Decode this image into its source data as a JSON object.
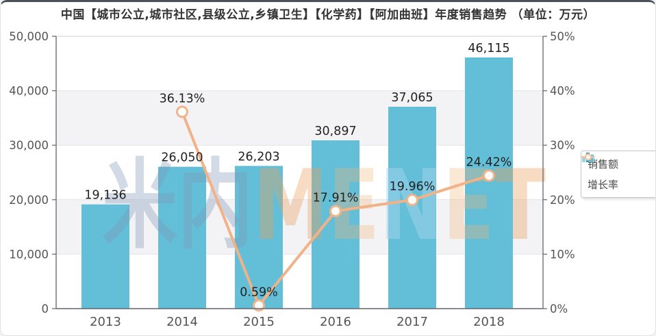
{
  "title": "中国【城市公立,城市社区,县级公立,乡镇卫生】【化学药】【阿加曲班】年度销售趋势 （单位：万元）",
  "watermark": {
    "text": "米内MENET",
    "letters": [
      {
        "ch": "米",
        "color": "rgba(125,150,180,0.35)"
      },
      {
        "ch": "内",
        "color": "rgba(125,150,180,0.35)"
      },
      {
        "ch": "M",
        "color": "rgba(233,160,95,0.38)"
      },
      {
        "ch": "E",
        "color": "rgba(238,180,120,0.32)"
      },
      {
        "ch": "N",
        "color": "rgba(160,210,235,0.55)"
      },
      {
        "ch": "E",
        "color": "rgba(238,180,120,0.32)"
      },
      {
        "ch": "T",
        "color": "rgba(233,160,95,0.38)"
      }
    ]
  },
  "legend": {
    "items": [
      {
        "label": "销售额",
        "series_type": "bar"
      },
      {
        "label": "增长率",
        "series_type": "line"
      }
    ]
  },
  "colors": {
    "bar_fill": "#63bfd7",
    "line": "#f1b287",
    "marker_fill": "#fffdf8",
    "marker_stroke": "#f0b48c",
    "value_label": "#222222",
    "axis_text": "#555555",
    "band": "#f3f3f6",
    "grid": "#e4e4ea",
    "grid_top": "#cfd0d6",
    "axis_line": "#60656c"
  },
  "chart_data": {
    "type": "bar",
    "title": "中国【城市公立,城市社区,县级公立,乡镇卫生】【化学药】【阿加曲班】年度销售趋势 （单位：万元）",
    "categories": [
      "2013",
      "2014",
      "2015",
      "2016",
      "2017",
      "2018"
    ],
    "series": [
      {
        "name": "销售额",
        "type": "bar",
        "axis": "left",
        "values": [
          19136,
          26050,
          26203,
          30897,
          37065,
          46115
        ],
        "labels": [
          "19,136",
          "26,050",
          "26,203",
          "30,897",
          "37,065",
          "46,115"
        ]
      },
      {
        "name": "增长率",
        "type": "line",
        "axis": "right",
        "x": [
          "2014",
          "2015",
          "2016",
          "2017",
          "2018"
        ],
        "values": [
          36.13,
          0.59,
          17.91,
          19.96,
          24.42
        ],
        "labels": [
          "36.13%",
          "0.59%",
          "17.91%",
          "19.96%",
          "24.42%"
        ]
      }
    ],
    "left_axis": {
      "min": 0,
      "max": 50000,
      "step": 10000,
      "tick_labels": [
        "0",
        "10,000",
        "20,000",
        "30,000",
        "40,000",
        "50,000"
      ]
    },
    "right_axis": {
      "min": 0,
      "max": 50,
      "step": 10,
      "tick_labels": [
        "0%",
        "10%",
        "20%",
        "30%",
        "40%",
        "50%"
      ]
    },
    "grid": true,
    "legend_position": "right"
  }
}
